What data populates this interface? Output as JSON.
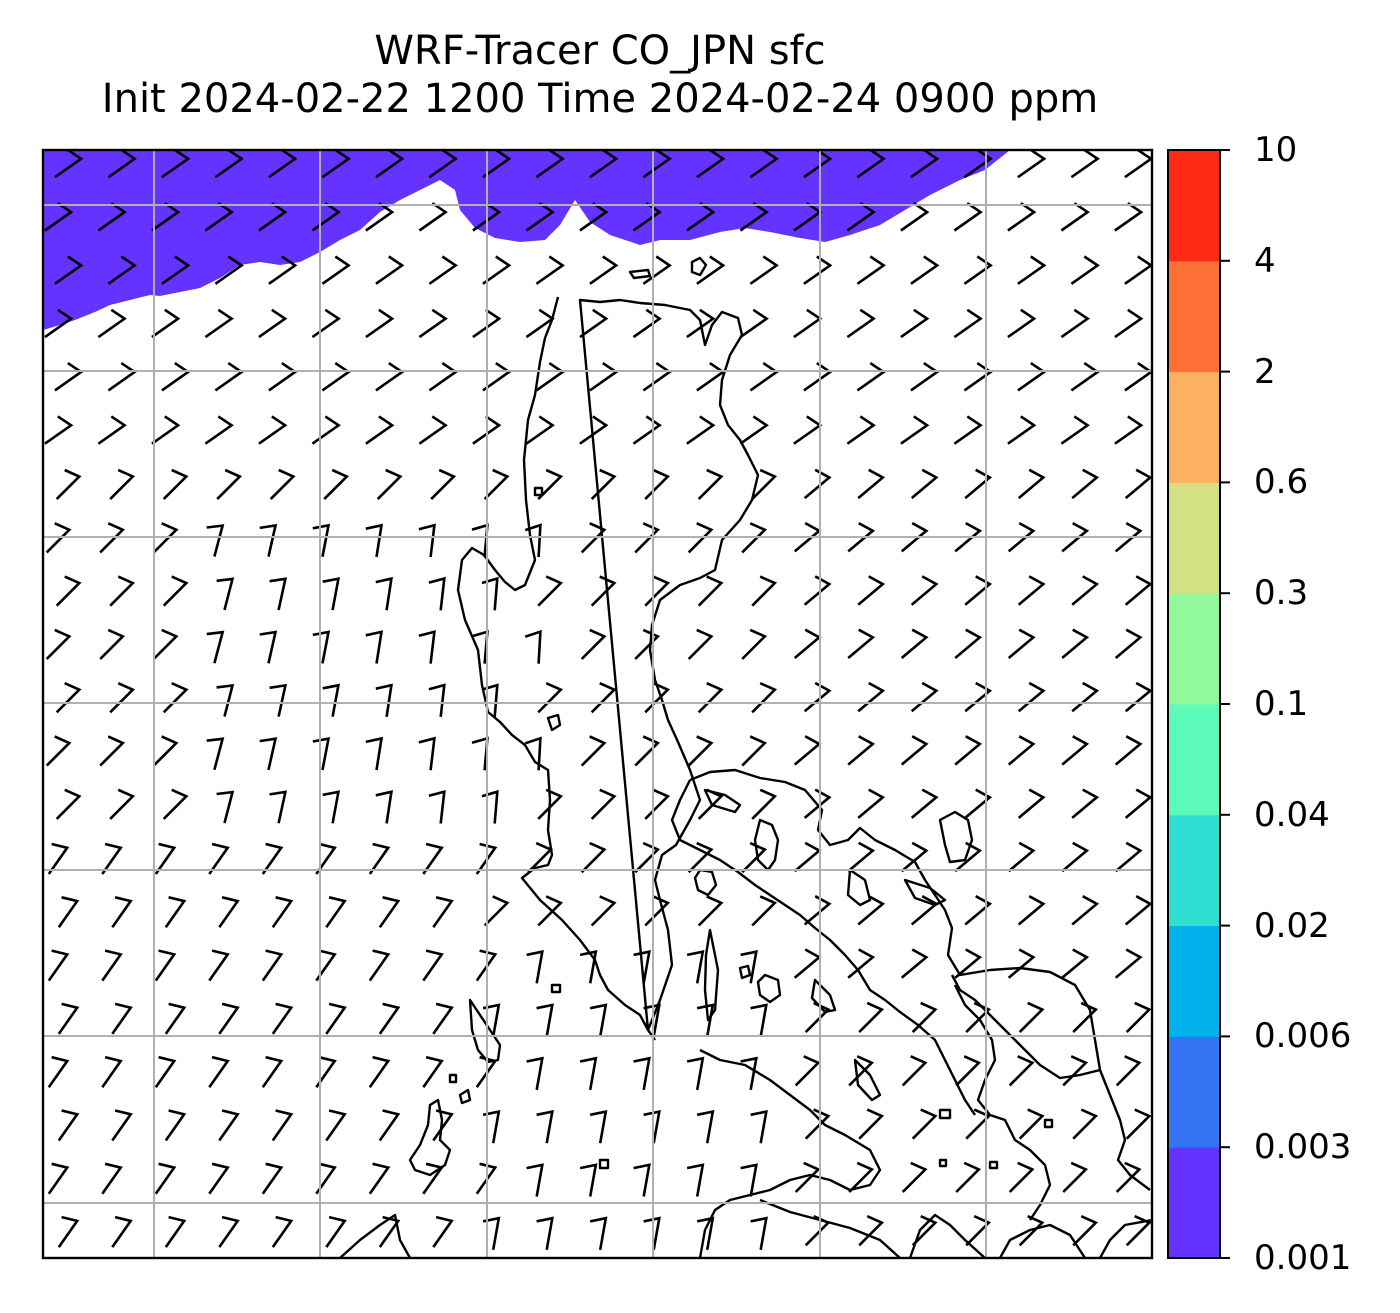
{
  "title_line1": "WRF-Tracer CO_JPN sfc",
  "title_line2": "Init 2024-02-22 1200 Time 2024-02-24 0900 ppm",
  "colorbar": {
    "levels": [
      "0.001",
      "0.003",
      "0.006",
      "0.02",
      "0.04",
      "0.1",
      "0.3",
      "0.6",
      "2",
      "4",
      "10"
    ],
    "colors": [
      "#6433ff",
      "#3473f1",
      "#00b1eb",
      "#30dfd1",
      "#5cfbba",
      "#92f99a",
      "#d2e184",
      "#fdb062",
      "#ff7039",
      "#ff2a13"
    ]
  },
  "map": {
    "tracer_fill_color": "#6433ff",
    "tracer_level": "0.001",
    "grid": true,
    "wind_barbs": true,
    "coastlines": true
  }
}
